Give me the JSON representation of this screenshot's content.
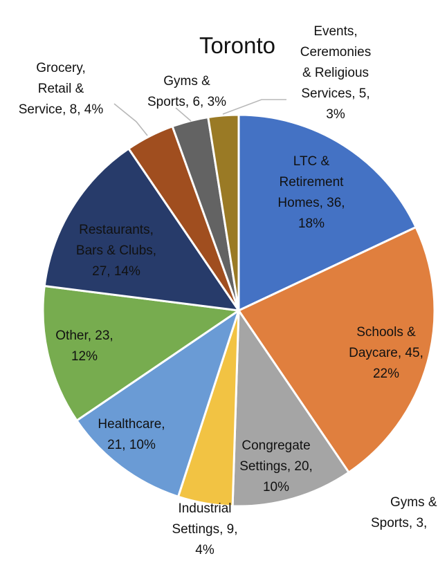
{
  "chart_data": {
    "type": "pie",
    "title": "Toronto",
    "slices": [
      {
        "label": "LTC & Retirement Homes",
        "value": 36,
        "percent": "18%",
        "color": "#4472C4",
        "label_lines": [
          "LTC &",
          "Retirement",
          "Homes, 36,",
          "18%"
        ]
      },
      {
        "label": "Schools & Daycare",
        "value": 45,
        "percent": "22%",
        "color": "#E07F3E",
        "label_lines": [
          "Schools &",
          "Daycare, 45,",
          "22%"
        ]
      },
      {
        "label": "Congregate Settings",
        "value": 20,
        "percent": "10%",
        "color": "#A5A5A5",
        "label_lines": [
          "Congregate",
          "Settings, 20,",
          "10%"
        ]
      },
      {
        "label": "Industrial Settings",
        "value": 9,
        "percent": "4%",
        "color": "#F2C343",
        "label_lines": [
          "Industrial",
          "Settings, 9,",
          "4%"
        ]
      },
      {
        "label": "Healthcare",
        "value": 21,
        "percent": "10%",
        "color": "#6A9BD5",
        "label_lines": [
          "Healthcare,",
          "21, 10%"
        ]
      },
      {
        "label": "Other",
        "value": 23,
        "percent": "12%",
        "color": "#77AC4F",
        "label_lines": [
          "Other, 23,",
          "12%"
        ]
      },
      {
        "label": "Restaurants, Bars & Clubs",
        "value": 27,
        "percent": "14%",
        "color": "#273B6A",
        "label_lines": [
          "Restaurants,",
          "Bars & Clubs,",
          "27, 14%"
        ]
      },
      {
        "label": "Grocery, Retail & Service",
        "value": 8,
        "percent": "4%",
        "color": "#A04E1F",
        "label_lines": [
          "Grocery,",
          "Retail &",
          "Service, 8, 4%"
        ]
      },
      {
        "label": "Gyms & Sports",
        "value": 6,
        "percent": "3%",
        "color": "#636363",
        "label_lines": [
          "Gyms &",
          "Sports, 6, 3%"
        ]
      },
      {
        "label": "Events, Ceremonies & Religious Services",
        "value": 5,
        "percent": "3%",
        "color": "#9A7A25",
        "label_lines": [
          "Events,",
          "Ceremonies",
          "& Religious",
          "Services, 5,",
          "3%"
        ]
      }
    ],
    "partial_next_chart_label_lines": [
      "Gyms &",
      "Sports, 3,"
    ]
  }
}
